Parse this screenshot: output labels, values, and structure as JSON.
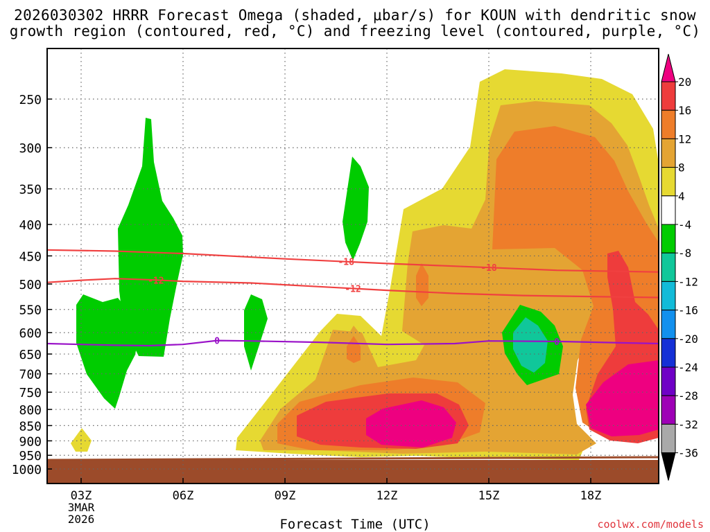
{
  "chart_data": {
    "type": "time-height contour",
    "title_line1": "2026030302 HRRR Forecast Omega (shaded, μbar/s) for KOUN with dendritic snow",
    "title_line2": "growth region (contoured, red, °C) and freezing level (contoured, purple, °C)",
    "xlabel": "Forecast Time (UTC)",
    "ylabel": "",
    "x_ticks": [
      "03Z",
      "06Z",
      "09Z",
      "12Z",
      "15Z",
      "18Z"
    ],
    "x_tick_hours": [
      3,
      6,
      9,
      12,
      15,
      18
    ],
    "x_range_hours": [
      2,
      20
    ],
    "date_label": [
      "3MAR",
      "2026"
    ],
    "y_ticks": [
      250,
      300,
      350,
      400,
      450,
      500,
      550,
      600,
      650,
      700,
      750,
      800,
      850,
      900,
      950,
      1000
    ],
    "y_range_hPa": [
      200,
      1025
    ],
    "ground_level_hPa": 975,
    "colorbar_labels": [
      "20",
      "16",
      "12",
      "8",
      "4",
      "-4",
      "-8",
      "-12",
      "-16",
      "-20",
      "-24",
      "-28",
      "-32",
      "-36"
    ],
    "colorbar_colors": [
      "#ee0080",
      "#ee3c3c",
      "#ee7d2a",
      "#e4a433",
      "#e6d932",
      "#ffffff",
      "#00cc00",
      "#10c79a",
      "#12bbd8",
      "#1290ee",
      "#1530d6",
      "#6f00c6",
      "#9e00b6",
      "#a9a9a9",
      "#000000"
    ],
    "contours": [
      {
        "name": "dendritic -18 °C",
        "label": "-18",
        "color": "#f04040",
        "points": [
          [
            2,
            440
          ],
          [
            4,
            442
          ],
          [
            6,
            446
          ],
          [
            9,
            455
          ],
          [
            12,
            463
          ],
          [
            15,
            470
          ],
          [
            17,
            475
          ],
          [
            20,
            478
          ]
        ]
      },
      {
        "name": "dendritic -12 °C",
        "label": "-12",
        "color": "#f04040",
        "points": [
          [
            2,
            497
          ],
          [
            3,
            493
          ],
          [
            4,
            490
          ],
          [
            5,
            492
          ],
          [
            6,
            495
          ],
          [
            8,
            498
          ],
          [
            10,
            505
          ],
          [
            12,
            512
          ],
          [
            14,
            518
          ],
          [
            16,
            522
          ],
          [
            18,
            524
          ],
          [
            20,
            526
          ]
        ]
      },
      {
        "name": "freezing level 0 °C",
        "label": "0",
        "color": "#9a12c8",
        "points": [
          [
            2,
            625
          ],
          [
            3,
            627
          ],
          [
            4,
            629
          ],
          [
            5,
            630
          ],
          [
            6,
            627
          ],
          [
            7,
            618
          ],
          [
            8,
            619
          ],
          [
            10,
            622
          ],
          [
            12,
            627
          ],
          [
            14,
            625
          ],
          [
            15,
            619
          ],
          [
            17,
            620
          ],
          [
            20,
            625
          ]
        ]
      }
    ],
    "contour_label_hours": [
      [
        15.0,
        10.8
      ],
      [
        5.2,
        11.0
      ],
      [
        7.0,
        17.0
      ]
    ]
  },
  "credit": "coolwx.com/models"
}
